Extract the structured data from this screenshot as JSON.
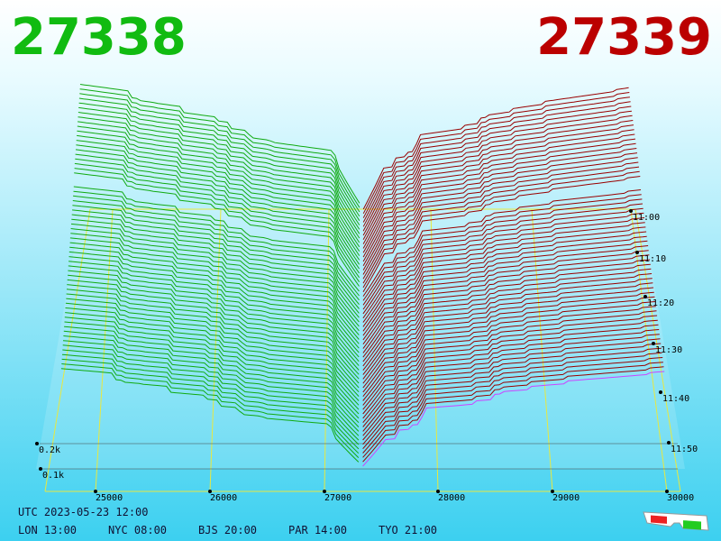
{
  "header": {
    "bid": "27338",
    "ask": "27339"
  },
  "price_axis": [
    "25000",
    "26000",
    "27000",
    "28000",
    "29000",
    "30000"
  ],
  "depth_axis": [
    "0.2k",
    "0.1k"
  ],
  "time_axis": [
    "11:00",
    "11:10",
    "11:20",
    "11:30",
    "11:40",
    "11:50"
  ],
  "footer": {
    "utc": "UTC 2023-05-23 12:00",
    "zones": [
      "LON 13:00",
      "NYC 08:00",
      "BJS 20:00",
      "PAR 14:00",
      "TYO 21:00"
    ]
  }
}
